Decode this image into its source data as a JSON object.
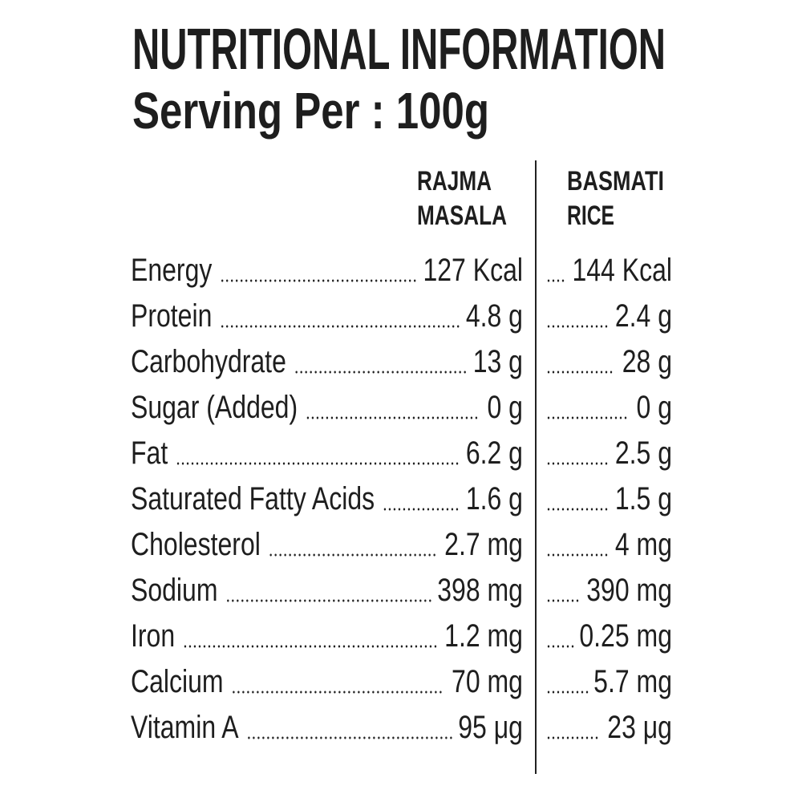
{
  "header": {
    "title": "NUTRITIONAL INFORMATION",
    "subtitle": "Serving Per : 100g"
  },
  "table": {
    "columns": [
      [
        "RAJMA",
        "MASALA"
      ],
      [
        "BASMATI",
        "RICE"
      ]
    ],
    "rows": [
      [
        "Energy",
        "127 Kcal",
        "144 Kcal"
      ],
      [
        "Protein",
        "4.8 g",
        "2.4 g"
      ],
      [
        "Carbohydrate",
        "13 g",
        "28 g"
      ],
      [
        "Sugar (Added)",
        "0 g",
        "0 g"
      ],
      [
        "Fat",
        "6.2 g",
        "2.5 g"
      ],
      [
        "Saturated Fatty Acids",
        "1.6 g",
        "1.5 g"
      ],
      [
        "Cholesterol",
        "2.7 mg",
        "4 mg"
      ],
      [
        "Sodium",
        "398 mg",
        "390 mg"
      ],
      [
        "Iron",
        "1.2 mg",
        "0.25 mg"
      ],
      [
        "Calcium",
        "70 mg",
        "5.7 mg"
      ],
      [
        "Vitamin A",
        "95 μg",
        "23 μg"
      ]
    ]
  }
}
